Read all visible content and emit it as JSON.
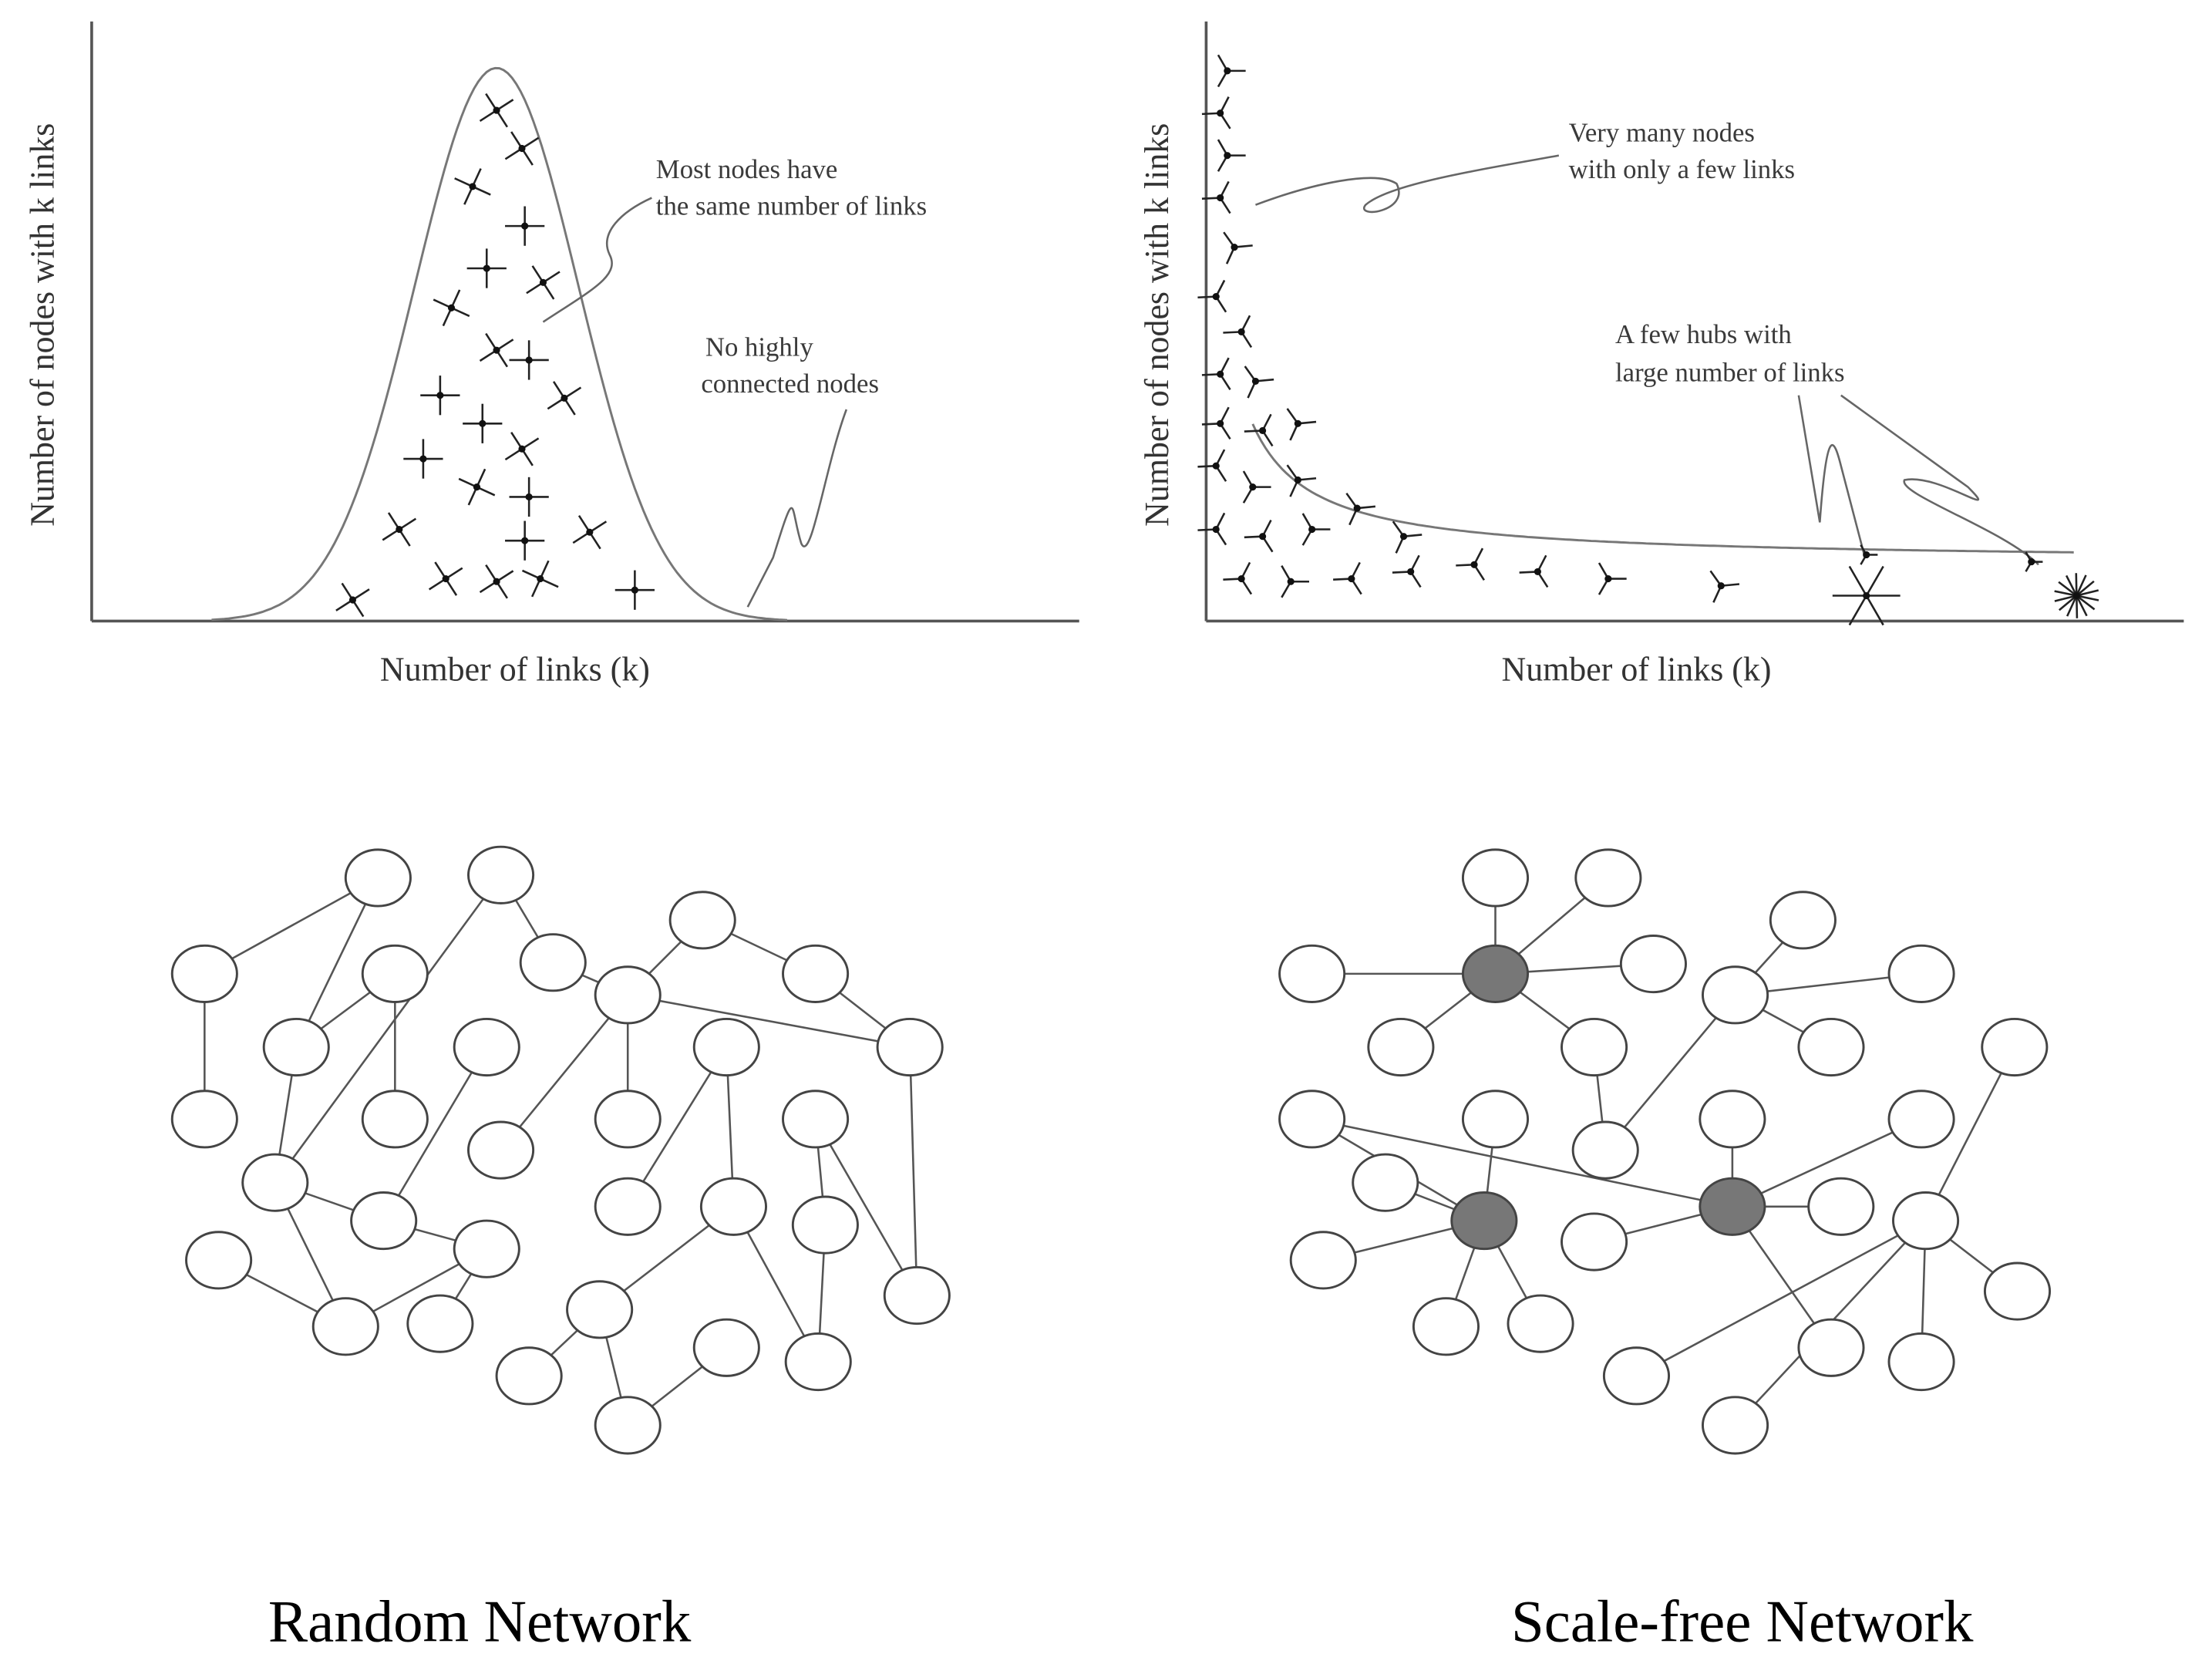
{
  "panels": [
    {
      "y_label": "Number of nodes with k links",
      "x_label": "Number of links (k)",
      "annotations": [
        "Most nodes have",
        "the same number of links",
        "No highly",
        "connected nodes"
      ],
      "caption": "Random Network"
    },
    {
      "y_label": "Number of nodes with k links",
      "x_label": "Number of links (k)",
      "annotations": [
        "Very many nodes",
        "with only a few links",
        "A few hubs with",
        "large number of links"
      ],
      "caption": "Scale-free Network"
    }
  ]
}
